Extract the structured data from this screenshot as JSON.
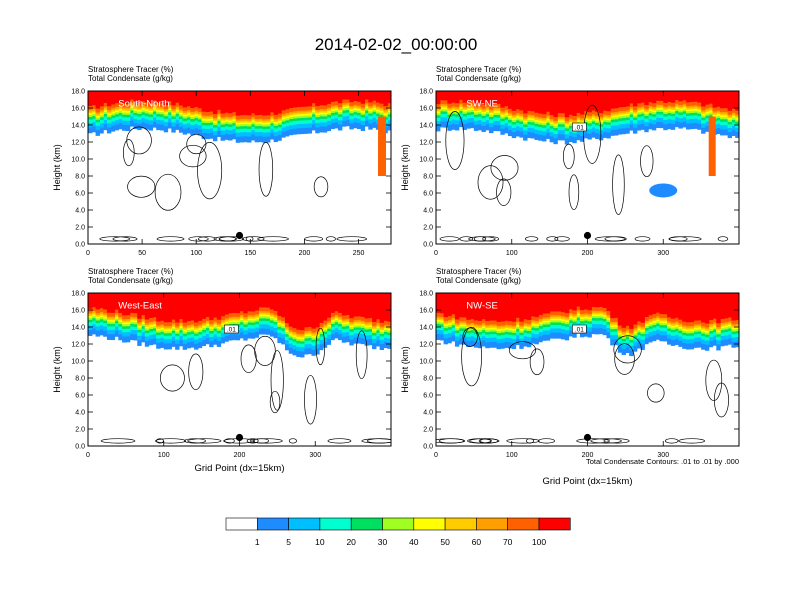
{
  "page_title": "2014-02-02_00:00:00",
  "contour_note": "Total Condensate Contours: .01 to .01 by .000",
  "colorbar": {
    "levels": [
      "1",
      "5",
      "10",
      "20",
      "30",
      "40",
      "50",
      "60",
      "70",
      "100"
    ],
    "colors": [
      "#ffffff",
      "#1e8cff",
      "#00bfff",
      "#00ffd0",
      "#00e060",
      "#00ff00",
      "#a0ff20",
      "#ffff00",
      "#ffcc00",
      "#ffa000",
      "#ff6000",
      "#ff0000"
    ]
  },
  "chart_data": [
    {
      "type": "heatmap",
      "panel": "South-North",
      "label_left_1": "Stratosphere Tracer   (%)",
      "label_left_2": "Total Condensate   (g/kg)",
      "xlabel": "",
      "ylabel": "Height (km)",
      "xlim": [
        0,
        280
      ],
      "ylim": [
        0,
        18
      ],
      "xticks": [
        "0",
        "50",
        "100",
        "150",
        "200",
        "250"
      ],
      "xtick_values": [
        0,
        50,
        100,
        150,
        200,
        250
      ],
      "yticks": [
        "0.0",
        "2.0",
        "4.0",
        "6.0",
        "8.0",
        "10.0",
        "12.0",
        "14.0",
        "16.0",
        "18.0"
      ],
      "marker": {
        "x": 140,
        "y": 1.0
      },
      "contour_label": "",
      "base_km": 16.0
    },
    {
      "type": "heatmap",
      "panel": "SW-NE",
      "label_left_1": "Stratosphere Tracer   (%)",
      "label_left_2": "Total Condensate   (g/kg)",
      "xlabel": "",
      "ylabel": "Height (km)",
      "xlim": [
        0,
        400
      ],
      "ylim": [
        0,
        18
      ],
      "xticks": [
        "0",
        "100",
        "200",
        "300"
      ],
      "xtick_values": [
        0,
        100,
        200,
        300
      ],
      "yticks": [
        "0.0",
        "2.0",
        "4.0",
        "6.0",
        "8.0",
        "10.0",
        "12.0",
        "14.0",
        "16.0",
        "18.0"
      ],
      "marker": {
        "x": 200,
        "y": 1.0
      },
      "contour_label": ".01",
      "base_km": 16.0
    },
    {
      "type": "heatmap",
      "panel": "West-East",
      "label_left_1": "Stratosphere Tracer   (%)",
      "label_left_2": "Total Condensate   (g/kg)",
      "xlabel": "Grid Point (dx=15km)",
      "ylabel": "Height (km)",
      "xlim": [
        0,
        400
      ],
      "ylim": [
        0,
        18
      ],
      "xticks": [
        "0",
        "100",
        "200",
        "300"
      ],
      "xtick_values": [
        0,
        100,
        200,
        300
      ],
      "yticks": [
        "0.0",
        "2.0",
        "4.0",
        "6.0",
        "8.0",
        "10.0",
        "12.0",
        "14.0",
        "16.0",
        "18.0"
      ],
      "marker": {
        "x": 200,
        "y": 1.0
      },
      "contour_label": ".01",
      "base_km": 15.5
    },
    {
      "type": "heatmap",
      "panel": "NW-SE",
      "label_left_1": "Stratosphere Tracer   (%)",
      "label_left_2": "Total Condensate   (g/kg)",
      "xlabel": "Grid Point (dx=15km)",
      "ylabel": "Height (km)",
      "xlim": [
        0,
        400
      ],
      "ylim": [
        0,
        18
      ],
      "xticks": [
        "0",
        "100",
        "200",
        "300"
      ],
      "xtick_values": [
        0,
        100,
        200,
        300
      ],
      "yticks": [
        "0.0",
        "2.0",
        "4.0",
        "6.0",
        "8.0",
        "10.0",
        "12.0",
        "14.0",
        "16.0",
        "18.0"
      ],
      "marker": {
        "x": 200,
        "y": 1.0
      },
      "contour_label": ".01",
      "base_km": 15.5
    }
  ]
}
